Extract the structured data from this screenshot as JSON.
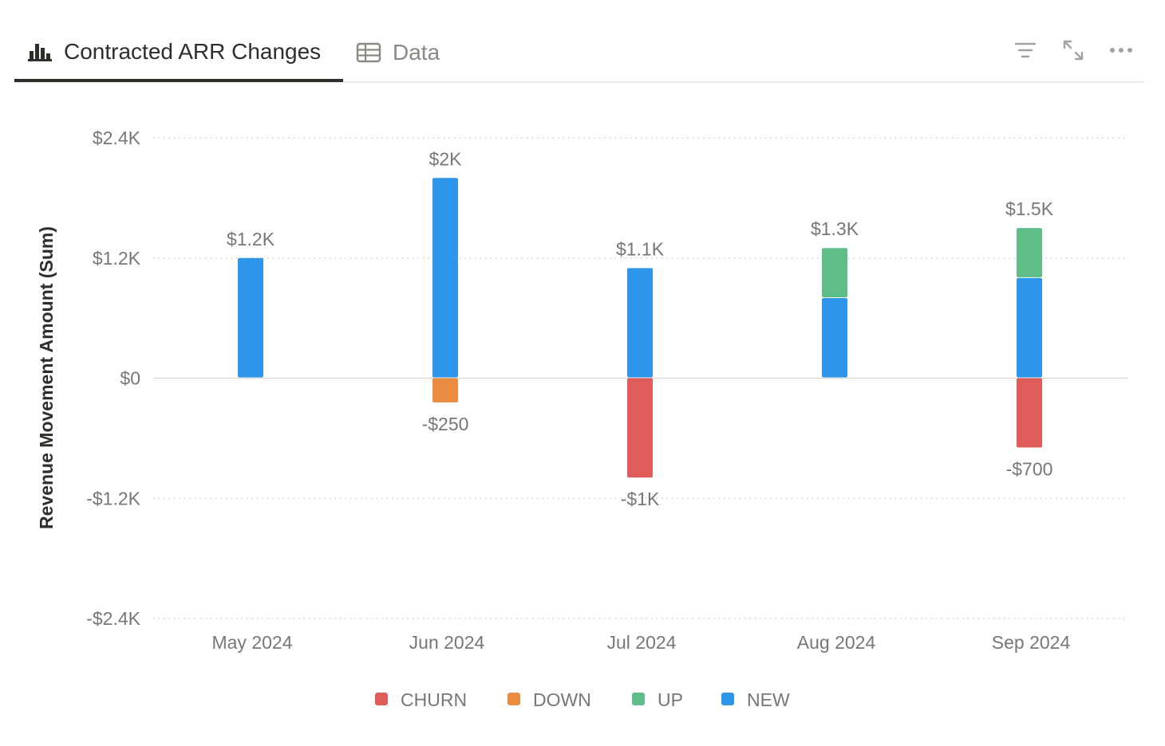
{
  "tabs": [
    {
      "label": "Contracted ARR Changes",
      "icon": "bar-chart-icon",
      "active": true
    },
    {
      "label": "Data",
      "icon": "table-icon",
      "active": false
    }
  ],
  "toolbar": {
    "filter_icon": "filter-icon",
    "expand_icon": "expand-icon",
    "more_icon": "more-icon"
  },
  "chart_data": {
    "type": "bar",
    "stacked": true,
    "title": "",
    "xlabel": "",
    "ylabel": "Revenue Movement Amount (Sum)",
    "ylim": [
      -2400,
      2400
    ],
    "yticks": [
      2400,
      1200,
      0,
      -1200,
      -2400
    ],
    "ytick_labels": [
      "$2.4K",
      "$1.2K",
      "$0",
      "-$1.2K",
      "-$2.4K"
    ],
    "categories": [
      "May 2024",
      "Jun 2024",
      "Jul 2024",
      "Aug 2024",
      "Sep 2024"
    ],
    "series": [
      {
        "name": "CHURN",
        "color": "#e05c5a",
        "values": [
          0,
          0,
          -1000,
          0,
          -700
        ]
      },
      {
        "name": "DOWN",
        "color": "#ea8c3f",
        "values": [
          0,
          -250,
          0,
          0,
          0
        ]
      },
      {
        "name": "UP",
        "color": "#5fbd8a",
        "values": [
          0,
          0,
          0,
          500,
          500
        ]
      },
      {
        "name": "NEW",
        "color": "#2d96ea",
        "values": [
          1200,
          2000,
          1100,
          800,
          1000
        ]
      }
    ],
    "positive_totals": [
      "$1.2K",
      "$2K",
      "$1.1K",
      "$1.3K",
      "$1.5K"
    ],
    "negative_totals": [
      "",
      "-$250",
      "-$1K",
      "",
      "-$700"
    ],
    "grid": true,
    "legend": "bottom"
  }
}
